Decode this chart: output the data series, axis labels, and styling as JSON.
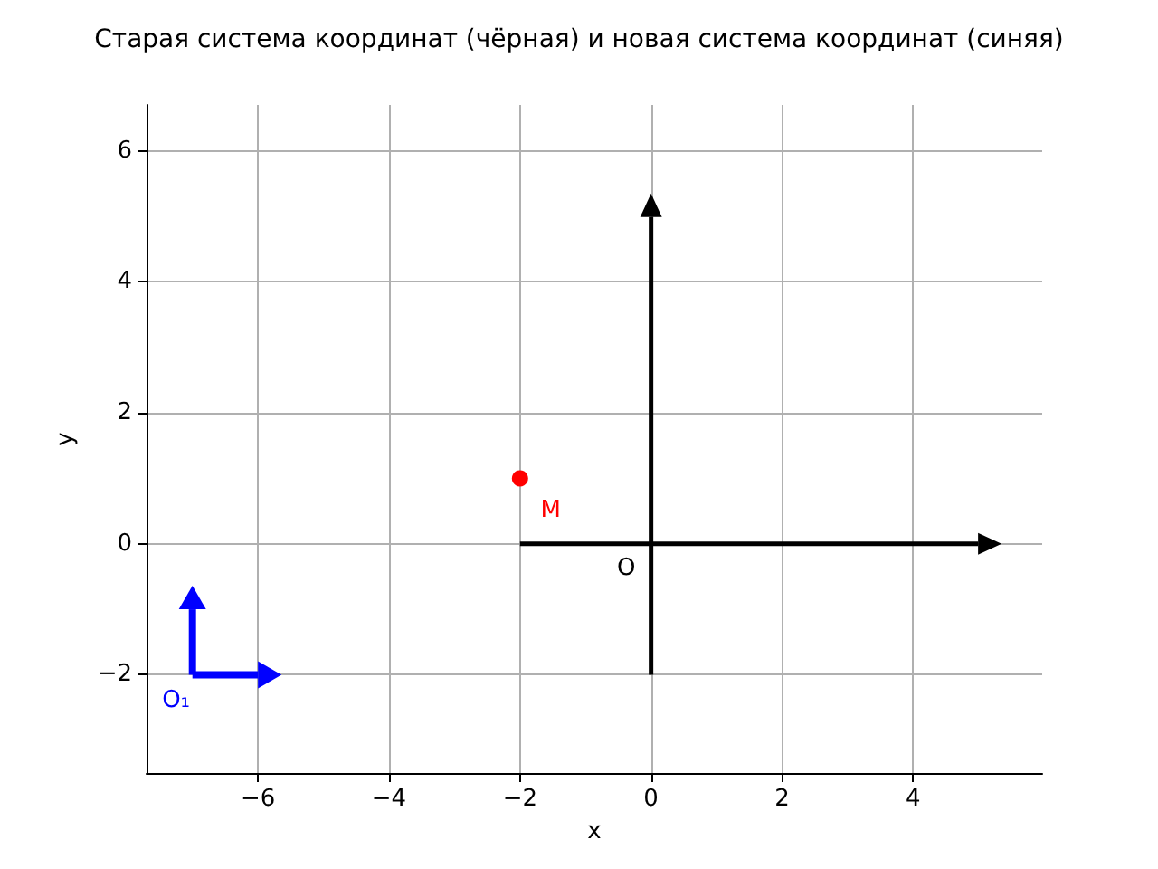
{
  "chart_data": {
    "type": "scatter",
    "title": "Старая система координат (чёрная) и новая система координат (синяя)",
    "xlabel": "x",
    "ylabel": "y",
    "xlim": [
      -7.7,
      5.97
    ],
    "ylim": [
      -3.5,
      6.7
    ],
    "xticks": [
      -6,
      -4,
      -2,
      0,
      2,
      4
    ],
    "yticks": [
      -2,
      0,
      2,
      4,
      6
    ],
    "grid": true,
    "series": [
      {
        "color": "#ff0000",
        "x": [
          -2
        ],
        "values": [
          1
        ],
        "marker": "circle"
      }
    ],
    "annotations": [
      {
        "text": "M",
        "x": -2,
        "y": 1
      },
      "O",
      "O₁"
    ]
  }
}
